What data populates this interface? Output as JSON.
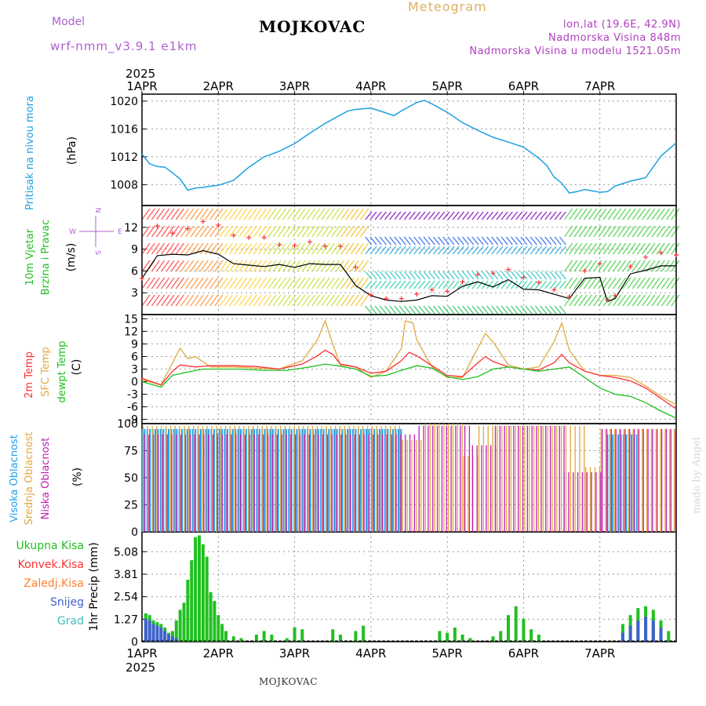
{
  "header": {
    "model_label": "Model",
    "model_name": "wrf-nmm_v3.9.1 e1km",
    "station": "MOJKOVAC",
    "meteogram_label": "Meteogram",
    "lonlat": "lon,lat (19.6E, 42.9N)",
    "elevation": "Nadmorska Visina 848m",
    "elevation_model": "Nadmorska Visina u modelu 1521.05m",
    "year": "2025"
  },
  "footer": {
    "station": "MOJKOVAC",
    "year": "2025",
    "credit": "made by Angel"
  },
  "compass": {
    "north": "N",
    "south": "S",
    "west": "W",
    "east": "E"
  },
  "colors": {
    "pressure": "#1aa0e0",
    "temp2m": "#ff3030",
    "sfc": "#e0a840",
    "dew": "#20c020",
    "high_cloud": "#20a0f0",
    "mid_cloud": "#e0a840",
    "low_cloud": "#c020b0",
    "total_precip": "#20c020",
    "snow": "#4060d0",
    "conv": "#ff3030",
    "frozen": "#ff8030",
    "hail": "#40c0c0"
  },
  "chart_data": [
    {
      "type": "line",
      "panel": "pressure",
      "ylabel_main": "Pritisak na nivou mora",
      "units": "(hPa)",
      "ylim": [
        1005,
        1021
      ],
      "yticks": [
        "1008",
        "1012",
        "1016",
        "1020"
      ],
      "xticks": [
        "1APR",
        "2APR",
        "3APR",
        "4APR",
        "5APR",
        "6APR",
        "7APR"
      ],
      "grid": true,
      "series": [
        {
          "x": [
            0,
            0.1,
            0.2,
            0.3,
            0.4,
            0.5,
            0.6,
            0.7,
            0.8,
            0.9,
            1.0,
            1.2,
            1.4,
            1.6,
            1.8,
            2.0,
            2.2,
            2.4,
            2.6,
            2.7,
            2.8,
            3.0,
            3.2,
            3.3,
            3.4,
            3.5,
            3.6,
            3.7,
            3.8,
            3.9,
            4.0,
            4.2,
            4.4,
            4.6,
            4.8,
            5.0,
            5.2,
            5.3,
            5.4,
            5.5,
            5.6,
            5.7,
            5.8,
            6.0,
            6.1,
            6.2,
            6.4,
            6.6,
            6.8,
            7.0
          ],
          "values": [
            1012.4,
            1011.0,
            1010.6,
            1010.5,
            1009.7,
            1008.8,
            1007.2,
            1007.5,
            1007.6,
            1007.8,
            1007.9,
            1008.6,
            1010.5,
            1012.0,
            1012.8,
            1013.9,
            1015.4,
            1016.8,
            1018.0,
            1018.6,
            1018.8,
            1019.0,
            1018.3,
            1017.9,
            1018.6,
            1019.2,
            1019.8,
            1020.1,
            1019.6,
            1019.0,
            1018.4,
            1016.9,
            1015.8,
            1014.8,
            1014.1,
            1013.4,
            1011.8,
            1010.8,
            1009.1,
            1008.2,
            1006.8,
            1007.0,
            1007.3,
            1006.9,
            1007.0,
            1007.8,
            1008.5,
            1009.0,
            1012.1,
            1014.0
          ]
        }
      ]
    },
    {
      "type": "line",
      "panel": "wind",
      "ylabel_main": "10m Vjetar",
      "ylabel_sub": "Brzina i Pravac",
      "units": "(m/s)",
      "ylim": [
        0,
        15
      ],
      "yticks": [
        "3",
        "6",
        "9",
        "12"
      ],
      "series": [
        {
          "name": "speed",
          "x": [
            0,
            0.2,
            0.4,
            0.6,
            0.8,
            1.0,
            1.2,
            1.4,
            1.6,
            1.8,
            2.0,
            2.2,
            2.4,
            2.6,
            2.8,
            3.0,
            3.2,
            3.4,
            3.6,
            3.8,
            4.0,
            4.2,
            4.4,
            4.6,
            4.8,
            5.0,
            5.2,
            5.4,
            5.6,
            5.8,
            6.0,
            6.1,
            6.2,
            6.4,
            6.6,
            6.8,
            7.0
          ],
          "values": [
            5,
            8.1,
            8.3,
            8.2,
            8.8,
            8.3,
            7.0,
            6.8,
            6.6,
            6.9,
            6.5,
            7.0,
            6.9,
            6.9,
            4.0,
            2.6,
            2.0,
            1.8,
            2.0,
            2.6,
            2.5,
            3.9,
            4.5,
            3.8,
            4.8,
            3.5,
            3.4,
            2.8,
            2.2,
            5.0,
            5.1,
            1.8,
            2.2,
            5.6,
            6.1,
            6.7,
            6.7
          ]
        },
        {
          "name": "gust",
          "x": [
            0,
            0.2,
            0.4,
            0.6,
            0.8,
            1.0,
            1.2,
            1.4,
            1.6,
            1.8,
            2.0,
            2.2,
            2.4,
            2.6,
            2.8,
            3.0,
            3.2,
            3.4,
            3.6,
            3.8,
            4.0,
            4.2,
            4.4,
            4.6,
            4.8,
            5.0,
            5.2,
            5.4,
            5.6,
            5.8,
            6.0,
            6.1,
            6.2,
            6.4,
            6.6,
            6.8,
            7.0
          ],
          "values": [
            5,
            12.2,
            11.2,
            11.8,
            12.8,
            12.3,
            10.9,
            10.6,
            10.6,
            9.6,
            9.5,
            10.0,
            9.4,
            9.4,
            6.5,
            2.7,
            2.2,
            2.2,
            2.8,
            3.4,
            3.2,
            4.5,
            5.5,
            5.7,
            6.2,
            5.1,
            4.4,
            3.4,
            2.5,
            6.0,
            7.0,
            2.0,
            2.6,
            6.6,
            7.9,
            8.5,
            8.2
          ]
        }
      ]
    },
    {
      "type": "line",
      "panel": "temperature",
      "ylabel": [
        "2m Temp",
        "SFC Temp",
        "dewpt Temp"
      ],
      "units": "(C)",
      "ylim": [
        -10,
        16
      ],
      "yticks": [
        "-9",
        "-6",
        "-3",
        "0",
        "3",
        "6",
        "9",
        "12",
        "15"
      ],
      "series": [
        {
          "name": "2m Temp",
          "x": [
            0,
            0.25,
            0.4,
            0.5,
            0.7,
            0.9,
            1.2,
            1.5,
            1.8,
            2.1,
            2.3,
            2.4,
            2.5,
            2.6,
            2.8,
            3.0,
            3.2,
            3.4,
            3.5,
            3.6,
            3.8,
            4.0,
            4.2,
            4.4,
            4.5,
            4.6,
            4.8,
            5.0,
            5.2,
            5.4,
            5.5,
            5.6,
            5.8,
            6.0,
            6.2,
            6.4,
            6.6,
            6.8,
            7.0
          ],
          "values": [
            0.8,
            -0.8,
            2.5,
            4.0,
            3.5,
            3.8,
            3.8,
            3.6,
            3.0,
            4.2,
            6.2,
            7.5,
            6.5,
            4.2,
            3.5,
            2.0,
            2.5,
            5.0,
            7.0,
            6.2,
            3.8,
            1.5,
            1.2,
            4.5,
            6.0,
            4.8,
            3.5,
            3.0,
            2.8,
            4.5,
            6.5,
            4.5,
            2.5,
            1.5,
            1.0,
            0.2,
            -1.5,
            -4.0,
            -6.5
          ]
        },
        {
          "name": "SFC Temp",
          "x": [
            0,
            0.25,
            0.4,
            0.5,
            0.6,
            0.7,
            0.9,
            1.2,
            1.5,
            1.8,
            2.1,
            2.3,
            2.4,
            2.5,
            2.6,
            2.8,
            3.0,
            3.2,
            3.4,
            3.45,
            3.55,
            3.6,
            3.8,
            4.0,
            4.2,
            4.4,
            4.5,
            4.6,
            4.8,
            5.0,
            5.2,
            5.4,
            5.5,
            5.6,
            5.8,
            6.0,
            6.2,
            6.4,
            6.6,
            6.8,
            7.0
          ],
          "values": [
            0.5,
            -0.8,
            4.5,
            8.0,
            5.5,
            6.0,
            3.5,
            3.5,
            3.2,
            3.0,
            5.0,
            10.0,
            14.5,
            9.0,
            4.0,
            3.5,
            1.0,
            2.5,
            8.0,
            14.5,
            14.0,
            10.0,
            3.5,
            1.0,
            1.0,
            8.0,
            11.5,
            9.5,
            4.0,
            3.0,
            3.5,
            9.5,
            14.0,
            7.5,
            2.5,
            1.5,
            1.5,
            1.0,
            -1.0,
            -3.5,
            -5.5
          ]
        },
        {
          "name": "dewpt Temp",
          "x": [
            0,
            0.25,
            0.4,
            0.6,
            0.8,
            1.0,
            1.3,
            1.6,
            1.9,
            2.2,
            2.4,
            2.6,
            2.8,
            3.0,
            3.2,
            3.4,
            3.6,
            3.8,
            4.0,
            4.2,
            4.4,
            4.6,
            4.8,
            5.0,
            5.2,
            5.4,
            5.6,
            5.8,
            6.0,
            6.2,
            6.4,
            6.6,
            6.8,
            7.0
          ],
          "values": [
            0,
            -1.3,
            1.5,
            2.3,
            3.0,
            3.0,
            3.0,
            2.7,
            2.7,
            3.5,
            4.2,
            3.7,
            3.0,
            1.3,
            1.5,
            2.7,
            3.8,
            3.2,
            1.2,
            0.5,
            1.2,
            3.0,
            3.5,
            3.0,
            2.5,
            3.0,
            3.5,
            1.0,
            -1.5,
            -3.0,
            -3.5,
            -5.0,
            -7.0,
            -8.7
          ]
        }
      ]
    },
    {
      "type": "bar",
      "panel": "clouds",
      "ylabel": [
        "Visoka Oblacnost",
        "Srednja Oblacnost",
        "Niska Oblacnost"
      ],
      "units": "(%)",
      "ylim": [
        0,
        100
      ],
      "yticks": [
        "0",
        "25",
        "50",
        "75",
        "100"
      ],
      "series": [
        {
          "name": "Visoka Oblacnost",
          "segments": [
            [
              0,
              3.4,
              95
            ],
            [
              6.1,
              6.5,
              90
            ]
          ]
        },
        {
          "name": "Srednja Oblacnost",
          "segments": [
            [
              0,
              3.4,
              98
            ],
            [
              3.4,
              3.7,
              85
            ],
            [
              3.7,
              4.2,
              100
            ],
            [
              4.2,
              4.4,
              70
            ],
            [
              4.4,
              5.8,
              98
            ],
            [
              5.8,
              6.0,
              60
            ],
            [
              6.0,
              7.0,
              95
            ]
          ]
        },
        {
          "name": "Niska Oblacnost",
          "segments": [
            [
              0,
              3.6,
              90
            ],
            [
              3.6,
              4.3,
              98
            ],
            [
              4.3,
              4.6,
              80
            ],
            [
              4.6,
              5.5,
              98
            ],
            [
              5.5,
              6.0,
              55
            ],
            [
              6.0,
              7.0,
              95
            ]
          ]
        }
      ]
    },
    {
      "type": "bar",
      "panel": "precipitation",
      "ylabel": [
        "Ukupna Kisa",
        "Konvek.Kisa",
        "Zaledj.Kisa",
        "Snijeg",
        "Grad"
      ],
      "units": "1hr Precip (mm)",
      "ylim": [
        0,
        6.2
      ],
      "yticks": [
        "0",
        "1.27",
        "2.54",
        "3.81",
        "5.08"
      ],
      "xticks": [
        "1APR",
        "2APR",
        "3APR",
        "4APR",
        "5APR",
        "6APR",
        "7APR"
      ],
      "series": [
        {
          "name": "Ukupna Kisa",
          "x": [
            0.05,
            0.1,
            0.15,
            0.2,
            0.25,
            0.3,
            0.35,
            0.4,
            0.45,
            0.5,
            0.55,
            0.6,
            0.65,
            0.7,
            0.75,
            0.8,
            0.85,
            0.9,
            0.95,
            1.0,
            1.05,
            1.1,
            1.2,
            1.3,
            1.5,
            1.6,
            1.7,
            1.9,
            2.0,
            2.1,
            2.5,
            2.6,
            2.8,
            2.9,
            3.9,
            4.0,
            4.1,
            4.2,
            4.3,
            4.6,
            4.7,
            4.8,
            4.9,
            5.0,
            5.1,
            5.2,
            6.3,
            6.4,
            6.5,
            6.6,
            6.7,
            6.8,
            6.9
          ],
          "values": [
            1.6,
            1.5,
            1.2,
            1.1,
            1.0,
            0.8,
            0.5,
            0.6,
            1.2,
            1.8,
            2.2,
            3.5,
            4.6,
            5.9,
            6.0,
            5.5,
            4.8,
            2.8,
            2.3,
            1.5,
            1.0,
            0.6,
            0.3,
            0.2,
            0.4,
            0.6,
            0.4,
            0.2,
            0.8,
            0.7,
            0.7,
            0.4,
            0.6,
            0.9,
            0.6,
            0.5,
            0.8,
            0.4,
            0.2,
            0.3,
            0.6,
            1.5,
            2.0,
            1.3,
            0.7,
            0.4,
            1.0,
            1.5,
            1.9,
            2.0,
            1.8,
            1.2,
            0.6
          ]
        },
        {
          "name": "Snijeg",
          "x": [
            0.05,
            0.1,
            0.15,
            0.2,
            0.25,
            0.3,
            0.35,
            0.4,
            0.45,
            6.3,
            6.4,
            6.5,
            6.6,
            6.7,
            6.8
          ],
          "values": [
            1.3,
            1.2,
            1.0,
            0.9,
            0.8,
            0.6,
            0.4,
            0.3,
            0.2,
            0.5,
            0.9,
            1.2,
            1.4,
            1.2,
            0.8
          ]
        }
      ]
    }
  ]
}
